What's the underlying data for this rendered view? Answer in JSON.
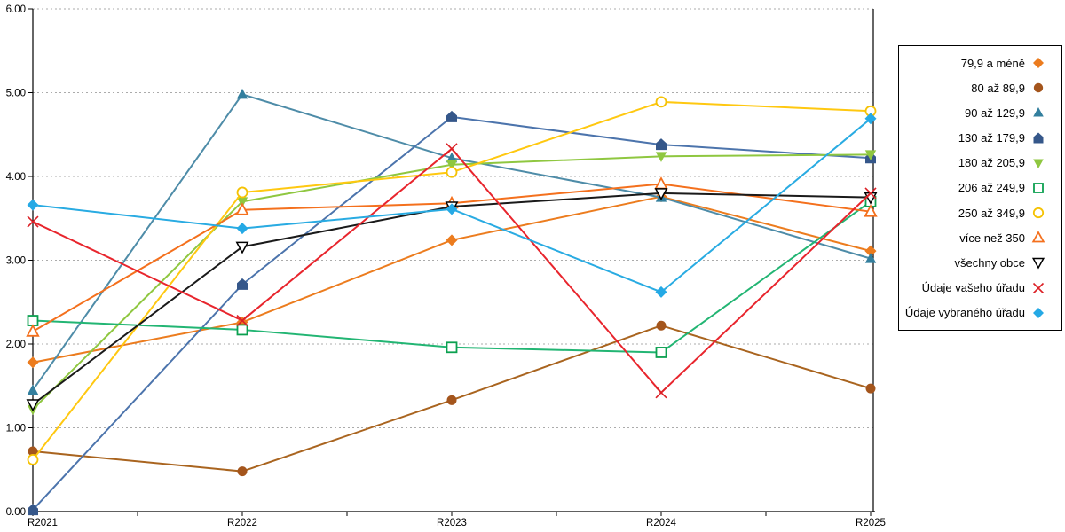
{
  "chart_data": {
    "type": "line",
    "title": "",
    "xlabel": "",
    "ylabel": "",
    "categories": [
      "R2021",
      "R2022",
      "R2023",
      "R2024",
      "R2025"
    ],
    "y_axis": {
      "min": 0,
      "max": 6,
      "step": 1,
      "tick_labels": [
        "0.00",
        "1.00",
        "2.00",
        "3.00",
        "4.00",
        "5.00",
        "6.00"
      ]
    },
    "grid": "dotted-horizontal",
    "legend_position": "right",
    "series": [
      {
        "name": "79,9 a méně",
        "marker": "diamond",
        "open": false,
        "color": "#EC7C1E",
        "line_color": "#EC7C1E",
        "values": [
          1.78,
          2.26,
          3.24,
          3.76,
          3.11
        ]
      },
      {
        "name": "80 až 89,9",
        "marker": "circle",
        "open": false,
        "color": "#A4551C",
        "line_color": "#A9641F",
        "values": [
          0.72,
          0.48,
          1.33,
          2.22,
          1.47
        ]
      },
      {
        "name": "90 až 129,9",
        "marker": "triangle-up",
        "open": false,
        "color": "#337F9E",
        "line_color": "#4E8CA8",
        "values": [
          1.45,
          4.98,
          4.22,
          3.75,
          3.02
        ]
      },
      {
        "name": "130 až 179,9",
        "marker": "pentagon",
        "open": false,
        "color": "#35578A",
        "line_color": "#4C74AC",
        "values": [
          0.02,
          2.71,
          4.71,
          4.38,
          4.22
        ]
      },
      {
        "name": "180 až 205,9",
        "marker": "triangle-down",
        "open": false,
        "color": "#8FC740",
        "line_color": "#8FC740",
        "values": [
          1.22,
          3.7,
          4.14,
          4.24,
          4.26
        ]
      },
      {
        "name": "206 až 249,9",
        "marker": "square",
        "open": true,
        "color": "#0CA050",
        "line_color": "#22B573",
        "values": [
          2.28,
          2.17,
          1.96,
          1.9,
          3.7
        ]
      },
      {
        "name": "250 až 349,9",
        "marker": "circle",
        "open": true,
        "color": "#F5C203",
        "line_color": "#FFC810",
        "values": [
          0.62,
          3.81,
          4.05,
          4.89,
          4.78
        ]
      },
      {
        "name": "více než 350",
        "marker": "triangle-up",
        "open": true,
        "color": "#F4701D",
        "line_color": "#F4701D",
        "values": [
          2.15,
          3.6,
          3.68,
          3.91,
          3.58
        ]
      },
      {
        "name": "všechny obce",
        "marker": "triangle-down",
        "open": true,
        "color": "#000000",
        "line_color": "#1A1A1A",
        "values": [
          1.28,
          3.16,
          3.64,
          3.8,
          3.75
        ]
      },
      {
        "name": "Údaje vašeho úřadu",
        "marker": "x",
        "open": true,
        "color": "#DC2026",
        "line_color": "#E8252D",
        "values": [
          3.46,
          2.28,
          4.33,
          1.42,
          3.8
        ]
      },
      {
        "name": "Údaje vybraného úřadu",
        "marker": "diamond",
        "open": false,
        "color": "#25A9E5",
        "line_color": "#29ABE2",
        "values": [
          3.66,
          3.38,
          3.61,
          2.62,
          4.69
        ]
      }
    ]
  }
}
